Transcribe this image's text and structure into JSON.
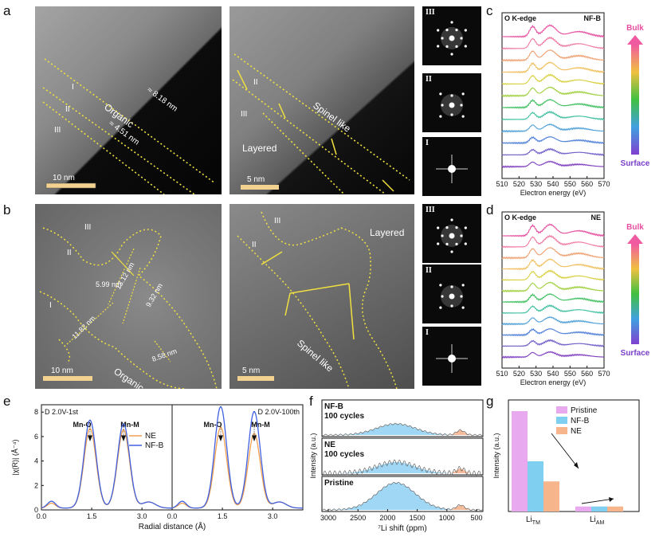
{
  "panels": {
    "a": "a",
    "b": "b",
    "c": "c",
    "d": "d",
    "e": "e",
    "f": "f",
    "g": "g"
  },
  "roman": {
    "i": "I",
    "ii": "II",
    "iii": "III"
  },
  "tem_a1": {
    "organic": "Organic",
    "d1": "≈ 8.18 nm",
    "d2": "≈ 4.51 nm",
    "scale": "10 nm"
  },
  "tem_a2": {
    "spinel": "Spinel like",
    "layered": "Layered",
    "scale": "5 nm"
  },
  "tem_b1": {
    "organic": "Organic",
    "d1": "5.99 nm",
    "d2": "13.12 nm",
    "d3": "9.32 nm",
    "d4": "11.82 nm",
    "d5": "8.58 nm",
    "scale": "10 nm"
  },
  "tem_b2": {
    "spinel": "Spinel like",
    "layered": "Layered",
    "scale": "5 nm"
  },
  "eels": {
    "title": "O K-edge",
    "c_sample": "NF-B",
    "d_sample": "NE",
    "xlabel": "Electron energy (eV)",
    "xticks": [
      "510",
      "520",
      "530",
      "540",
      "550",
      "560",
      "570"
    ],
    "bulk": "Bulk",
    "surface": "Surface"
  },
  "exafs": {
    "left_title": "D 2.0V-1st",
    "right_title": "D 2.0V-100th",
    "mno": "Mn-O",
    "mnm": "Mn-M",
    "ylabel": "|χ(R)| (Å⁻⁴)",
    "xlabel": "Radial distance (Å)",
    "xticks": [
      "0.0",
      "1.5",
      "3.0"
    ],
    "yticks": [
      "0",
      "2",
      "4",
      "6",
      "8"
    ],
    "legend": [
      "NE",
      "NF-B"
    ],
    "colors": {
      "NE": "#f0a050",
      "NF-B": "#4060e0"
    }
  },
  "nmr": {
    "labels": [
      "NF-B",
      "100 cycles",
      "NE",
      "100 cycles",
      "Pristine"
    ],
    "ylabel": "Intensity (a.u.)",
    "xlabel": "⁷Li shift (ppm)",
    "xticks": [
      "3000",
      "2500",
      "2000",
      "1500",
      "1000",
      "500"
    ]
  },
  "bar": {
    "legend": [
      "Pristine",
      "NF-B",
      "NE"
    ],
    "ylabel": "Intensity (a.u.)",
    "cat1": "Li",
    "cat1_sub": "TM",
    "cat2": "Li",
    "cat2_sub": "AM",
    "colors": {
      "Pristine": "#e9a9ee",
      "NF-B": "#7fd0f0",
      "NE": "#f6b58b"
    }
  },
  "chart_data": [
    {
      "type": "line",
      "title": "D 2.0V-1st",
      "xlabel": "Radial distance (Å)",
      "ylabel": "|χ(R)| (Å⁻⁴)",
      "xlim": [
        0,
        3.9
      ],
      "ylim": [
        0,
        8.6
      ],
      "series": [
        {
          "name": "NE",
          "peaks": [
            [
              1.45,
              6.5
            ],
            [
              2.45,
              6.4
            ]
          ]
        },
        {
          "name": "NF-B",
          "peaks": [
            [
              1.45,
              7.2
            ],
            [
              2.45,
              6.9
            ]
          ]
        }
      ]
    },
    {
      "type": "line",
      "title": "D 2.0V-100th",
      "xlabel": "Radial distance (Å)",
      "ylabel": "|χ(R)| (Å⁻⁴)",
      "xlim": [
        0,
        3.9
      ],
      "ylim": [
        0,
        8.6
      ],
      "series": [
        {
          "name": "NE",
          "peaks": [
            [
              1.45,
              6.6
            ],
            [
              2.45,
              6.1
            ]
          ]
        },
        {
          "name": "NF-B",
          "peaks": [
            [
              1.45,
              8.3
            ],
            [
              2.45,
              7.9
            ]
          ]
        }
      ]
    },
    {
      "type": "bar",
      "categories": [
        "LiTM",
        "LiAM"
      ],
      "series": [
        {
          "name": "Pristine",
          "values": [
            1.0,
            0.05
          ]
        },
        {
          "name": "NF-B",
          "values": [
            0.5,
            0.05
          ]
        },
        {
          "name": "NE",
          "values": [
            0.3,
            0.05
          ]
        }
      ]
    }
  ]
}
